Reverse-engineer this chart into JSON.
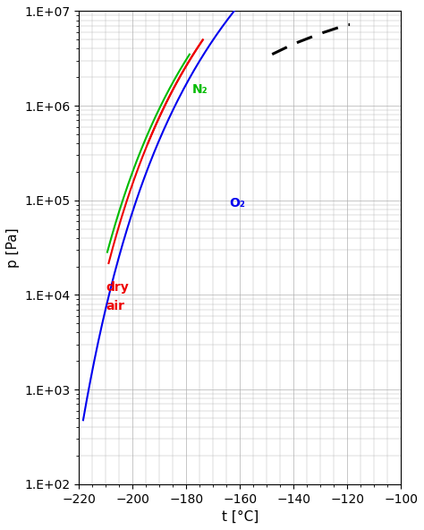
{
  "xlabel": "t [°C]",
  "ylabel": "p [Pa]",
  "xlim": [
    -220,
    -100
  ],
  "ylim": [
    100.0,
    10000000.0
  ],
  "xticks": [
    -220,
    -200,
    -180,
    -160,
    -140,
    -120,
    -100
  ],
  "grid_color": "#b0b0b0",
  "bg_color": "#ffffff",
  "n2_color": "#00bb00",
  "o2_color": "#0000ee",
  "air_color": "#ee0000",
  "dashed_color": "#000000",
  "label_n2": "N₂",
  "label_o2": "O₂",
  "label_air": "dry\nair"
}
